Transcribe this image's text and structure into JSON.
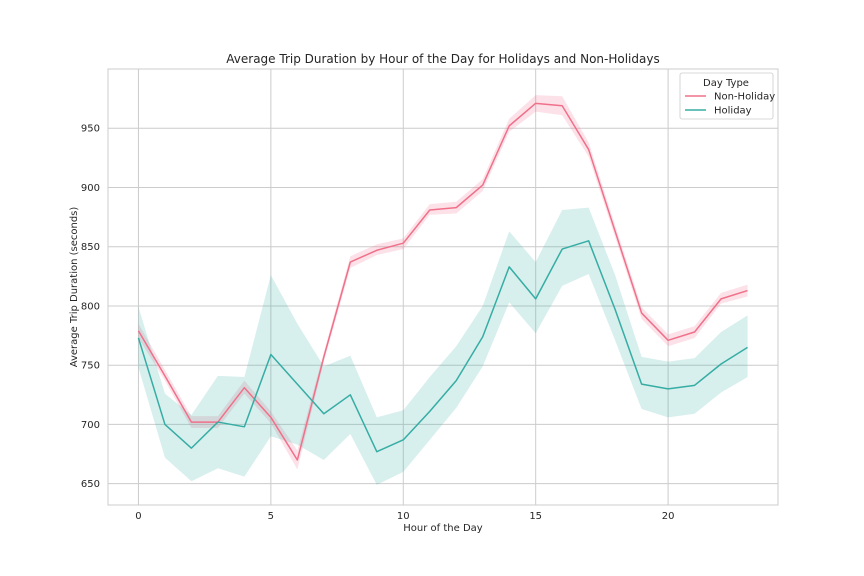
{
  "chart_data": {
    "type": "line",
    "title": "Average Trip Duration by Hour of the Day for Holidays and Non-Holidays",
    "xlabel": "Hour of the Day",
    "ylabel": "Average Trip Duration (seconds)",
    "xlim": [
      -1.15,
      24.15
    ],
    "ylim": [
      632,
      1000
    ],
    "xticks": [
      0,
      5,
      10,
      15,
      20
    ],
    "yticks": [
      650,
      700,
      750,
      800,
      850,
      900,
      950
    ],
    "grid": true,
    "legend": {
      "title": "Day Type",
      "placement": "top-right"
    },
    "x": [
      0,
      1,
      2,
      3,
      4,
      5,
      6,
      7,
      8,
      9,
      10,
      11,
      12,
      13,
      14,
      15,
      16,
      17,
      18,
      19,
      20,
      21,
      22,
      23
    ],
    "series": [
      {
        "name": "Non-Holiday",
        "color": "#f0708a",
        "values": [
          779,
          741,
          702,
          702,
          731,
          706,
          670,
          757,
          837,
          847,
          853,
          881,
          883,
          902,
          952,
          971,
          969,
          932,
          863,
          794,
          771,
          778,
          806,
          813
        ],
        "ci_low": [
          773,
          737,
          697,
          697,
          726,
          701,
          662,
          753,
          832,
          843,
          848,
          877,
          878,
          897,
          947,
          964,
          961,
          926,
          858,
          789,
          766,
          773,
          802,
          808
        ],
        "ci_high": [
          785,
          746,
          707,
          707,
          737,
          711,
          678,
          761,
          842,
          852,
          857,
          886,
          888,
          907,
          958,
          978,
          977,
          938,
          868,
          799,
          776,
          783,
          811,
          818
        ]
      },
      {
        "name": "Holiday",
        "color": "#36ada4",
        "values": [
          773,
          700,
          680,
          702,
          698,
          759,
          734,
          709,
          725,
          677,
          687,
          711,
          737,
          774,
          833,
          806,
          848,
          855,
          797,
          734,
          730,
          733,
          751,
          765
        ],
        "ci_low": [
          748,
          672,
          652,
          663,
          656,
          690,
          683,
          670,
          692,
          649,
          660,
          687,
          714,
          749,
          803,
          777,
          817,
          827,
          771,
          713,
          706,
          709,
          727,
          740
        ],
        "ci_high": [
          799,
          726,
          708,
          741,
          740,
          826,
          785,
          749,
          758,
          706,
          712,
          740,
          766,
          800,
          863,
          837,
          881,
          883,
          826,
          757,
          753,
          756,
          778,
          792
        ]
      }
    ]
  }
}
